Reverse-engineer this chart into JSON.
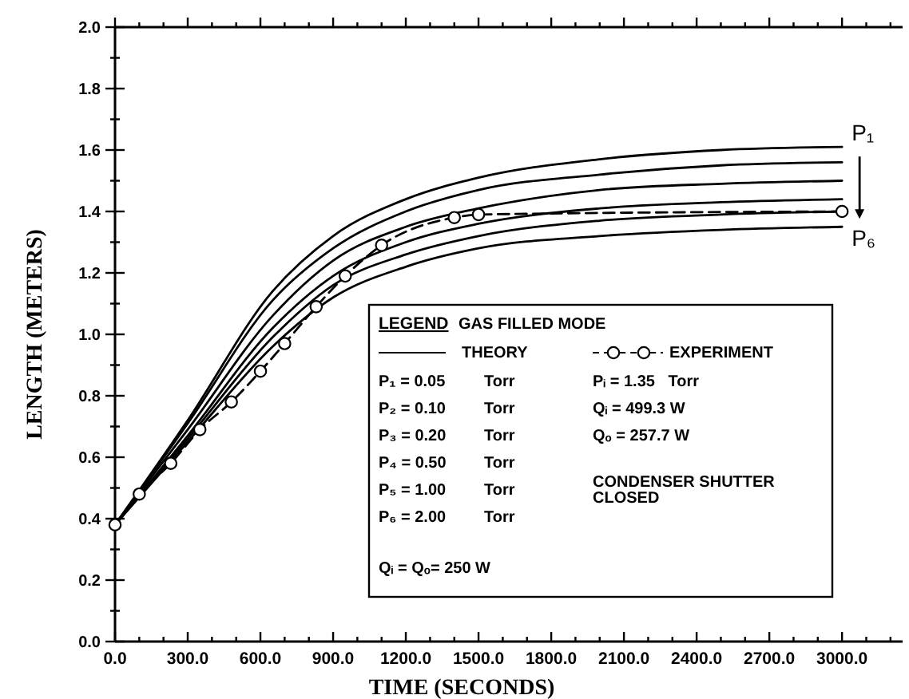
{
  "chart_data": {
    "type": "line",
    "xlabel": "TIME (SECONDS)",
    "ylabel": "LENGTH (METERS)",
    "legend_title": "LEGEND",
    "xlim": [
      0,
      3250
    ],
    "ylim": [
      0,
      2.0
    ],
    "xticks": [
      {
        "value": 0,
        "label": "0.0"
      },
      {
        "value": 100,
        "label": null
      },
      {
        "value": 200,
        "label": null
      },
      {
        "value": 300,
        "label": "300.0"
      },
      {
        "value": 400,
        "label": null
      },
      {
        "value": 500,
        "label": null
      },
      {
        "value": 600,
        "label": "600.0"
      },
      {
        "value": 700,
        "label": null
      },
      {
        "value": 800,
        "label": null
      },
      {
        "value": 900,
        "label": "900.0"
      },
      {
        "value": 1000,
        "label": null
      },
      {
        "value": 1100,
        "label": null
      },
      {
        "value": 1200,
        "label": "1200.0"
      },
      {
        "value": 1300,
        "label": null
      },
      {
        "value": 1400,
        "label": null
      },
      {
        "value": 1500,
        "label": "1500.0"
      },
      {
        "value": 1600,
        "label": null
      },
      {
        "value": 1700,
        "label": null
      },
      {
        "value": 1800,
        "label": "1800.0"
      },
      {
        "value": 1900,
        "label": null
      },
      {
        "value": 2000,
        "label": null
      },
      {
        "value": 2100,
        "label": "2100.0"
      },
      {
        "value": 2200,
        "label": null
      },
      {
        "value": 2300,
        "label": null
      },
      {
        "value": 2400,
        "label": "2400.0"
      },
      {
        "value": 2500,
        "label": null
      },
      {
        "value": 2600,
        "label": null
      },
      {
        "value": 2700,
        "label": "2700.0"
      },
      {
        "value": 2800,
        "label": null
      },
      {
        "value": 2900,
        "label": null
      },
      {
        "value": 3000,
        "label": "3000.0"
      },
      {
        "value": 3100,
        "label": null
      },
      {
        "value": 3200,
        "label": null
      }
    ],
    "yticks": [
      {
        "value": 0,
        "label": "0.0"
      },
      {
        "value": 0.1,
        "label": null
      },
      {
        "value": 0.2,
        "label": "0.2"
      },
      {
        "value": 0.3,
        "label": null
      },
      {
        "value": 0.4,
        "label": "0.4"
      },
      {
        "value": 0.5,
        "label": null
      },
      {
        "value": 0.6,
        "label": "0.6"
      },
      {
        "value": 0.7,
        "label": null
      },
      {
        "value": 0.8,
        "label": "0.8"
      },
      {
        "value": 0.9,
        "label": null
      },
      {
        "value": 1.0,
        "label": "1.0"
      },
      {
        "value": 1.1,
        "label": null
      },
      {
        "value": 1.2,
        "label": "1.2"
      },
      {
        "value": 1.3,
        "label": null
      },
      {
        "value": 1.4,
        "label": "1.4"
      },
      {
        "value": 1.5,
        "label": null
      },
      {
        "value": 1.6,
        "label": "1.6"
      },
      {
        "value": 1.7,
        "label": null
      },
      {
        "value": 1.8,
        "label": "1.8"
      },
      {
        "value": 1.9,
        "label": null
      },
      {
        "value": 2.0,
        "label": "2.0"
      }
    ],
    "legend": "bottom right",
    "x": [
      0,
      300,
      650,
      900,
      1200,
      1500,
      2000,
      2500,
      3000
    ],
    "series": [
      {
        "name": "P₁",
        "color": "#000000",
        "line_style": "solid",
        "marker": "none",
        "values": [
          0.38,
          0.72,
          1.14,
          1.32,
          1.44,
          1.51,
          1.57,
          1.6,
          1.61
        ]
      },
      {
        "color": "#000000",
        "line_style": "solid",
        "marker": "none",
        "values": [
          0.38,
          0.71,
          1.11,
          1.28,
          1.4,
          1.47,
          1.52,
          1.55,
          1.56
        ]
      },
      {
        "color": "#000000",
        "line_style": "solid",
        "marker": "none",
        "values": [
          0.38,
          0.69,
          1.06,
          1.24,
          1.35,
          1.41,
          1.47,
          1.49,
          1.5
        ]
      },
      {
        "color": "#000000",
        "line_style": "solid",
        "marker": "none",
        "values": [
          0.38,
          0.67,
          1.02,
          1.19,
          1.3,
          1.36,
          1.41,
          1.43,
          1.44
        ]
      },
      {
        "color": "#000000",
        "line_style": "solid",
        "marker": "none",
        "values": [
          0.38,
          0.66,
          0.99,
          1.16,
          1.26,
          1.32,
          1.37,
          1.39,
          1.4
        ]
      },
      {
        "name": "P₆",
        "color": "#000000",
        "line_style": "solid",
        "marker": "none",
        "values": [
          0.38,
          0.65,
          0.96,
          1.12,
          1.22,
          1.28,
          1.32,
          1.34,
          1.35
        ]
      },
      {
        "name": "EXPERIMENT",
        "color": "#000000",
        "line_style": "dashed",
        "marker": "circle",
        "x": [
          0,
          100,
          230,
          350,
          480,
          600,
          700,
          830,
          950,
          1100,
          1400,
          1500,
          3000
        ],
        "values": [
          0.38,
          0.48,
          0.58,
          0.69,
          0.78,
          0.88,
          0.97,
          1.09,
          1.19,
          1.29,
          1.38,
          1.39,
          1.4
        ]
      }
    ],
    "annotations": [
      "GAS FILLED MODE",
      "THEORY",
      "P₁ = 0.05",
      "P₂ = 0.10",
      "P₃ = 0.20",
      "P₄ = 0.50",
      "P₅ = 1.00",
      "P₆ = 2.00",
      "Torr",
      "Qᵢ = Qₒ= 250 W",
      "Pᵢ = 1.35   Torr",
      "Qᵢ = 499.3 W",
      "Qₒ = 257.7 W",
      "CONDENSER SHUTTER",
      "CLOSED"
    ]
  }
}
